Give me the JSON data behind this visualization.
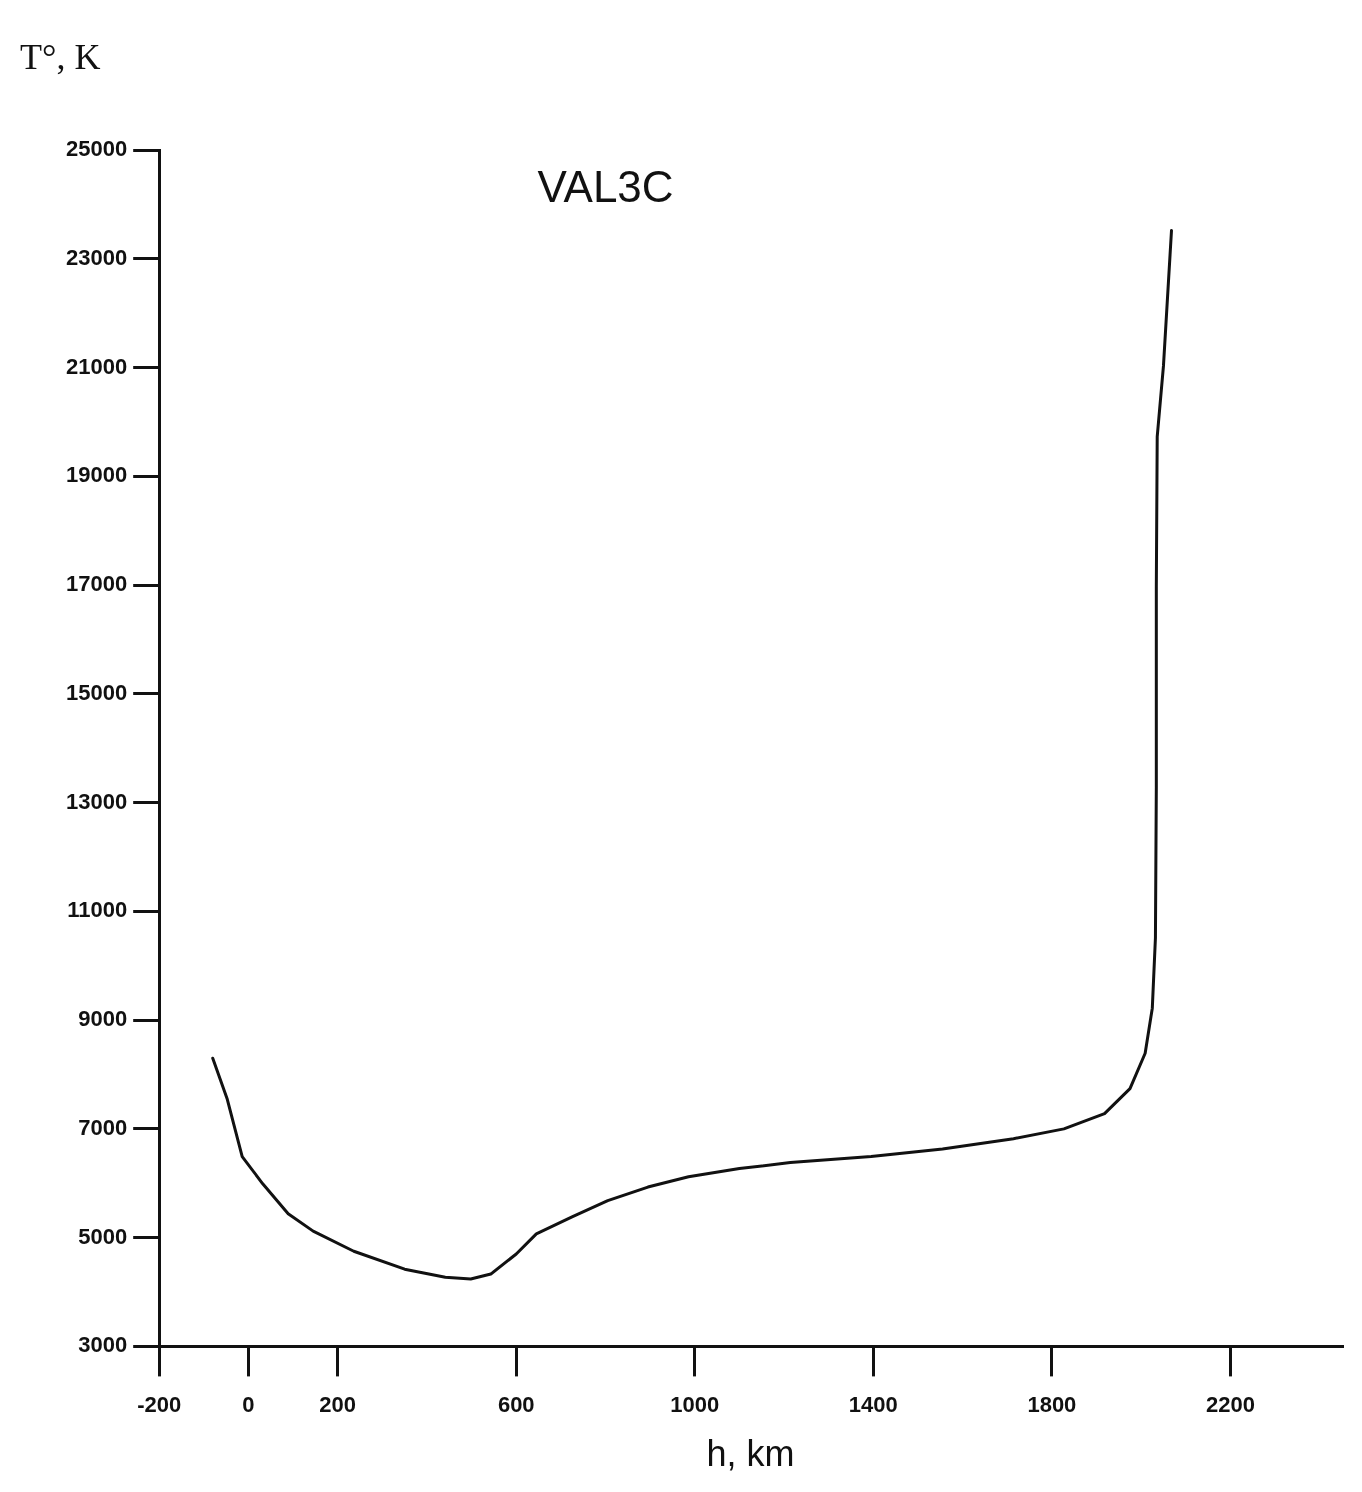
{
  "chart_data": {
    "type": "line",
    "title": "VAL3C",
    "xlabel": "h, km",
    "ylabel": "T°, K",
    "x": [
      -80,
      -48,
      -14,
      32,
      89,
      145,
      236,
      350,
      441,
      498,
      543,
      600,
      645,
      725,
      805,
      895,
      986,
      1100,
      1214,
      1395,
      1555,
      1714,
      1827,
      1918,
      1975,
      2009,
      2025,
      2032,
      2034,
      2034,
      2036,
      2050,
      2068
    ],
    "series": [
      {
        "color": "#111111",
        "values": [
          8300,
          7560,
          6490,
          5990,
          5440,
          5120,
          4750,
          4420,
          4270,
          4240,
          4330,
          4700,
          5070,
          5380,
          5680,
          5930,
          6120,
          6270,
          6380,
          6490,
          6630,
          6820,
          7000,
          7280,
          7740,
          8390,
          9220,
          10510,
          13280,
          16970,
          19730,
          21030,
          23520
        ]
      }
    ],
    "xlim": [
      -200,
      2450
    ],
    "xticks": [
      -200,
      0,
      200,
      600,
      1000,
      1400,
      1800,
      2200
    ],
    "ylim": [
      3000,
      25000
    ],
    "yticks": [
      3000,
      5000,
      7000,
      9000,
      11000,
      13000,
      15000,
      17000,
      19000,
      21000,
      23000,
      25000
    ],
    "grid": false,
    "legend": false,
    "marker": "none",
    "line_style": "solid"
  }
}
